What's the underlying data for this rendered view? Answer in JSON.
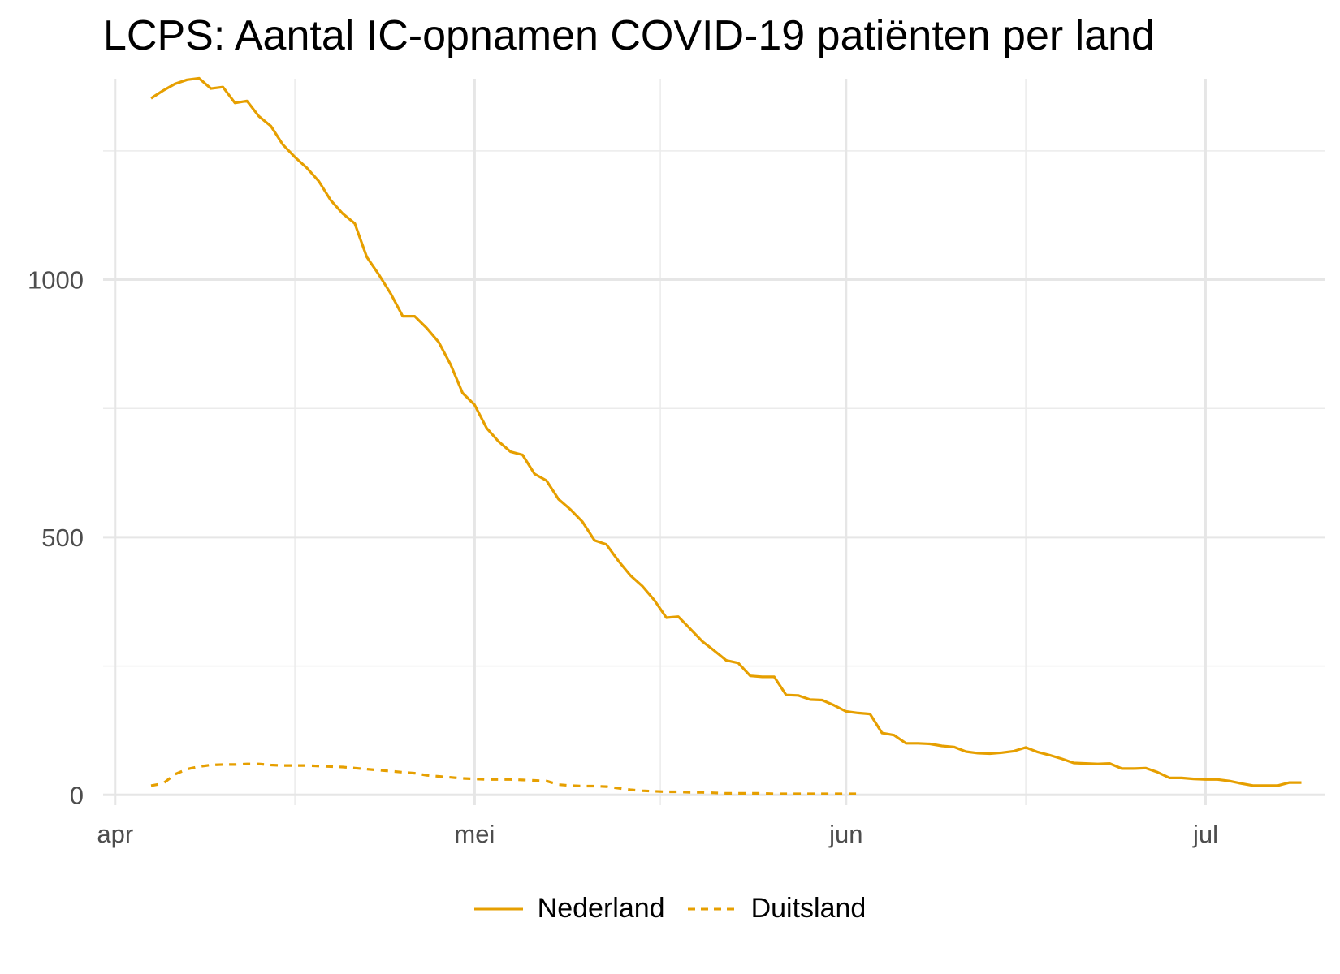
{
  "chart_data": {
    "type": "line",
    "title": "LCPS: Aantal IC-opnamen COVID-19 patiënten per land",
    "xlabel": "",
    "ylabel": "",
    "x_ticks": [
      {
        "date": "2020-04-01",
        "label": "apr"
      },
      {
        "date": "2020-05-01",
        "label": "mei"
      },
      {
        "date": "2020-06-01",
        "label": "jun"
      },
      {
        "date": "2020-07-01",
        "label": "jul"
      }
    ],
    "y_ticks": [
      0,
      500,
      1000
    ],
    "xlim": [
      "2020-03-31",
      "2020-07-11"
    ],
    "ylim": [
      -20,
      1390
    ],
    "grid": true,
    "legend_position": "bottom",
    "color": "#E69F00",
    "series": [
      {
        "name": "Nederland",
        "linestyle": "solid",
        "points": [
          [
            "2020-04-04",
            1352
          ],
          [
            "2020-04-05",
            1367
          ],
          [
            "2020-04-06",
            1380
          ],
          [
            "2020-04-07",
            1388
          ],
          [
            "2020-04-08",
            1391
          ],
          [
            "2020-04-09",
            1371
          ],
          [
            "2020-04-10",
            1374
          ],
          [
            "2020-04-11",
            1343
          ],
          [
            "2020-04-12",
            1347
          ],
          [
            "2020-04-13",
            1317
          ],
          [
            "2020-04-14",
            1298
          ],
          [
            "2020-04-15",
            1262
          ],
          [
            "2020-04-16",
            1238
          ],
          [
            "2020-04-17",
            1217
          ],
          [
            "2020-04-18",
            1191
          ],
          [
            "2020-04-19",
            1154
          ],
          [
            "2020-04-20",
            1128
          ],
          [
            "2020-04-21",
            1109
          ],
          [
            "2020-04-22",
            1044
          ],
          [
            "2020-04-23",
            1010
          ],
          [
            "2020-04-24",
            973
          ],
          [
            "2020-04-25",
            929
          ],
          [
            "2020-04-26",
            929
          ],
          [
            "2020-04-27",
            906
          ],
          [
            "2020-04-28",
            879
          ],
          [
            "2020-04-29",
            835
          ],
          [
            "2020-04-30",
            780
          ],
          [
            "2020-05-01",
            757
          ],
          [
            "2020-05-02",
            712
          ],
          [
            "2020-05-03",
            686
          ],
          [
            "2020-05-04",
            666
          ],
          [
            "2020-05-05",
            660
          ],
          [
            "2020-05-06",
            623
          ],
          [
            "2020-05-07",
            610
          ],
          [
            "2020-05-08",
            574
          ],
          [
            "2020-05-09",
            554
          ],
          [
            "2020-05-10",
            530
          ],
          [
            "2020-05-11",
            494
          ],
          [
            "2020-05-12",
            486
          ],
          [
            "2020-05-13",
            454
          ],
          [
            "2020-05-14",
            426
          ],
          [
            "2020-05-15",
            405
          ],
          [
            "2020-05-16",
            378
          ],
          [
            "2020-05-17",
            344
          ],
          [
            "2020-05-18",
            346
          ],
          [
            "2020-05-19",
            322
          ],
          [
            "2020-05-20",
            298
          ],
          [
            "2020-05-21",
            280
          ],
          [
            "2020-05-22",
            261
          ],
          [
            "2020-05-23",
            256
          ],
          [
            "2020-05-24",
            231
          ],
          [
            "2020-05-25",
            229
          ],
          [
            "2020-05-26",
            229
          ],
          [
            "2020-05-27",
            194
          ],
          [
            "2020-05-28",
            193
          ],
          [
            "2020-05-29",
            185
          ],
          [
            "2020-05-30",
            184
          ],
          [
            "2020-05-31",
            174
          ],
          [
            "2020-06-01",
            162
          ],
          [
            "2020-06-02",
            159
          ],
          [
            "2020-06-03",
            157
          ],
          [
            "2020-06-04",
            120
          ],
          [
            "2020-06-05",
            116
          ],
          [
            "2020-06-06",
            100
          ],
          [
            "2020-06-07",
            100
          ],
          [
            "2020-06-08",
            99
          ],
          [
            "2020-06-09",
            95
          ],
          [
            "2020-06-10",
            93
          ],
          [
            "2020-06-11",
            84
          ],
          [
            "2020-06-12",
            81
          ],
          [
            "2020-06-13",
            80
          ],
          [
            "2020-06-14",
            82
          ],
          [
            "2020-06-15",
            85
          ],
          [
            "2020-06-16",
            92
          ],
          [
            "2020-06-17",
            83
          ],
          [
            "2020-06-18",
            77
          ],
          [
            "2020-06-19",
            70
          ],
          [
            "2020-06-20",
            62
          ],
          [
            "2020-06-21",
            61
          ],
          [
            "2020-06-22",
            60
          ],
          [
            "2020-06-23",
            61
          ],
          [
            "2020-06-24",
            51
          ],
          [
            "2020-06-25",
            51
          ],
          [
            "2020-06-26",
            52
          ],
          [
            "2020-06-27",
            44
          ],
          [
            "2020-06-28",
            33
          ],
          [
            "2020-06-29",
            33
          ],
          [
            "2020-06-30",
            31
          ],
          [
            "2020-07-01",
            30
          ],
          [
            "2020-07-02",
            30
          ],
          [
            "2020-07-03",
            27
          ],
          [
            "2020-07-04",
            22
          ],
          [
            "2020-07-05",
            18
          ],
          [
            "2020-07-06",
            18
          ],
          [
            "2020-07-07",
            18
          ],
          [
            "2020-07-08",
            24
          ],
          [
            "2020-07-09",
            24
          ]
        ]
      },
      {
        "name": "Duitsland",
        "linestyle": "dashed",
        "points": [
          [
            "2020-04-04",
            18
          ],
          [
            "2020-04-05",
            22
          ],
          [
            "2020-04-06",
            40
          ],
          [
            "2020-04-07",
            50
          ],
          [
            "2020-04-08",
            55
          ],
          [
            "2020-04-09",
            58
          ],
          [
            "2020-04-10",
            59
          ],
          [
            "2020-04-11",
            59
          ],
          [
            "2020-04-12",
            60
          ],
          [
            "2020-04-13",
            60
          ],
          [
            "2020-04-14",
            58
          ],
          [
            "2020-04-15",
            57
          ],
          [
            "2020-04-16",
            57
          ],
          [
            "2020-04-17",
            57
          ],
          [
            "2020-04-18",
            56
          ],
          [
            "2020-04-19",
            55
          ],
          [
            "2020-04-20",
            54
          ],
          [
            "2020-04-21",
            52
          ],
          [
            "2020-04-22",
            50
          ],
          [
            "2020-04-23",
            48
          ],
          [
            "2020-04-24",
            46
          ],
          [
            "2020-04-25",
            44
          ],
          [
            "2020-04-26",
            42
          ],
          [
            "2020-04-27",
            38
          ],
          [
            "2020-04-28",
            36
          ],
          [
            "2020-04-29",
            34
          ],
          [
            "2020-04-30",
            32
          ],
          [
            "2020-05-01",
            31
          ],
          [
            "2020-05-02",
            30
          ],
          [
            "2020-05-03",
            30
          ],
          [
            "2020-05-04",
            30
          ],
          [
            "2020-05-05",
            29
          ],
          [
            "2020-05-06",
            28
          ],
          [
            "2020-05-07",
            27
          ],
          [
            "2020-05-08",
            20
          ],
          [
            "2020-05-09",
            18
          ],
          [
            "2020-05-10",
            17
          ],
          [
            "2020-05-11",
            17
          ],
          [
            "2020-05-12",
            16
          ],
          [
            "2020-05-13",
            13
          ],
          [
            "2020-05-14",
            10
          ],
          [
            "2020-05-15",
            8
          ],
          [
            "2020-05-16",
            7
          ],
          [
            "2020-05-17",
            6
          ],
          [
            "2020-05-18",
            6
          ],
          [
            "2020-05-19",
            5
          ],
          [
            "2020-05-20",
            5
          ],
          [
            "2020-05-21",
            4
          ],
          [
            "2020-05-22",
            3
          ],
          [
            "2020-05-23",
            3
          ],
          [
            "2020-05-24",
            3
          ],
          [
            "2020-05-25",
            3
          ],
          [
            "2020-05-26",
            2
          ],
          [
            "2020-05-27",
            2
          ],
          [
            "2020-05-28",
            2
          ],
          [
            "2020-05-29",
            2
          ],
          [
            "2020-05-30",
            2
          ],
          [
            "2020-05-31",
            2
          ],
          [
            "2020-06-01",
            2
          ],
          [
            "2020-06-02",
            2
          ]
        ]
      }
    ]
  }
}
